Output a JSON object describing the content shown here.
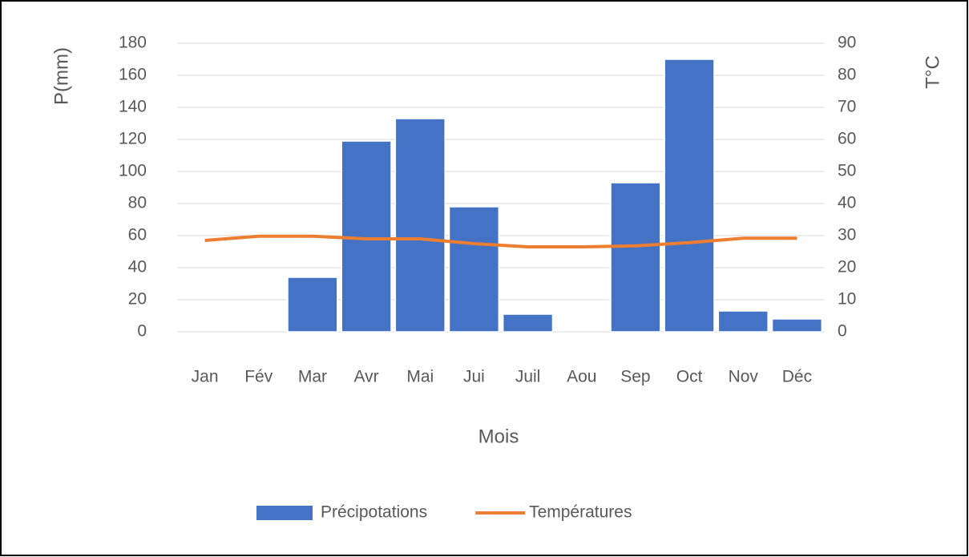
{
  "chart_data": {
    "type": "bar",
    "xlabel": "Mois",
    "ylabel": "P(mm)",
    "y2label": "T°C",
    "categories": [
      "Jan",
      "Fév",
      "Mar",
      "Avr",
      "Mai",
      "Jui",
      "Juil",
      "Aou",
      "Sep",
      "Oct",
      "Nov",
      "Déc"
    ],
    "series": [
      {
        "name": "Précipotations",
        "type": "bar",
        "color": "#4472c4",
        "values": [
          0,
          0,
          34,
          119,
          133,
          78,
          11,
          0,
          93,
          170,
          13,
          8
        ]
      },
      {
        "name": "Températures",
        "type": "line",
        "axis": "y2",
        "color": "#ed7d31",
        "values": [
          28.5,
          29.8,
          29.8,
          29,
          29,
          27.5,
          26.5,
          26.5,
          26.8,
          27.8,
          29.2,
          29.2
        ]
      }
    ],
    "ylim": [
      0,
      180
    ],
    "yticks": [
      0,
      20,
      40,
      60,
      80,
      100,
      120,
      140,
      160,
      180
    ],
    "y2lim": [
      0,
      90
    ],
    "y2ticks": [
      0,
      10,
      20,
      30,
      40,
      50,
      60,
      70,
      80,
      90
    ],
    "grid": true,
    "legend": "bottom"
  }
}
